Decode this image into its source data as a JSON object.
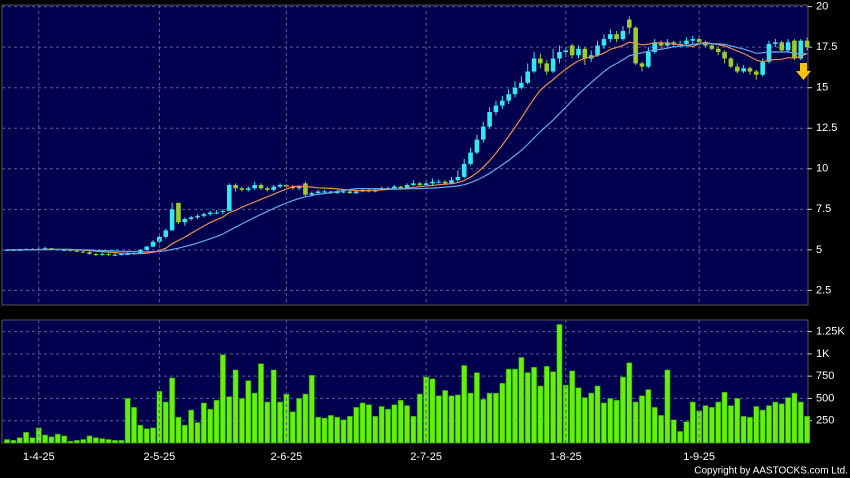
{
  "chart_data": [
    {
      "type": "candlestick",
      "up_color": "#33e8f0",
      "down_color": "#9ccc2c",
      "ylim": [
        1.6,
        20.1
      ],
      "yticks": [
        2.5,
        5,
        7.5,
        10,
        12.5,
        15,
        17.5,
        20
      ],
      "grid": true,
      "ohlc": [
        [
          4.98,
          5.05,
          4.95,
          5.0
        ],
        [
          5.0,
          5.05,
          4.95,
          5.0
        ],
        [
          5.0,
          5.08,
          4.97,
          5.0
        ],
        [
          5.0,
          5.1,
          4.98,
          5.05
        ],
        [
          5.05,
          5.1,
          5.0,
          5.05
        ],
        [
          5.02,
          5.15,
          5.0,
          5.05
        ],
        [
          5.05,
          5.2,
          5.0,
          5.1
        ],
        [
          5.1,
          5.12,
          5.0,
          5.05
        ],
        [
          5.05,
          5.08,
          4.95,
          5.0
        ],
        [
          5.0,
          5.05,
          4.92,
          5.0
        ],
        [
          5.0,
          5.02,
          4.9,
          4.95
        ],
        [
          4.95,
          5.0,
          4.85,
          4.9
        ],
        [
          4.9,
          4.95,
          4.8,
          4.85
        ],
        [
          4.85,
          4.9,
          4.7,
          4.75
        ],
        [
          4.75,
          4.8,
          4.62,
          4.7
        ],
        [
          4.7,
          4.85,
          4.65,
          4.75
        ],
        [
          4.75,
          4.8,
          4.62,
          4.7
        ],
        [
          4.7,
          4.78,
          4.62,
          4.7
        ],
        [
          4.68,
          4.8,
          4.65,
          4.75
        ],
        [
          4.72,
          4.85,
          4.68,
          4.75
        ],
        [
          4.75,
          4.9,
          4.7,
          4.8
        ],
        [
          4.8,
          5.05,
          4.78,
          5.0
        ],
        [
          5.0,
          5.25,
          4.95,
          5.2
        ],
        [
          5.2,
          5.6,
          5.15,
          5.5
        ],
        [
          5.5,
          5.9,
          5.4,
          5.8
        ],
        [
          5.8,
          6.3,
          5.7,
          6.2
        ],
        [
          6.2,
          7.9,
          6.2,
          7.5
        ],
        [
          7.9,
          7.9,
          6.6,
          6.7
        ],
        [
          6.7,
          7.0,
          6.5,
          6.9
        ],
        [
          6.9,
          7.1,
          6.8,
          7.0
        ],
        [
          7.0,
          7.2,
          6.9,
          7.1
        ],
        [
          7.1,
          7.3,
          7.0,
          7.2
        ],
        [
          7.2,
          7.4,
          7.1,
          7.3
        ],
        [
          7.3,
          7.45,
          7.2,
          7.3
        ],
        [
          7.35,
          7.5,
          7.2,
          7.4
        ],
        [
          7.4,
          9.1,
          7.4,
          9.0
        ],
        [
          9.0,
          9.1,
          8.6,
          8.8
        ],
        [
          8.8,
          8.9,
          8.6,
          8.7
        ],
        [
          8.7,
          8.9,
          8.6,
          8.8
        ],
        [
          8.8,
          9.2,
          8.7,
          9.0
        ],
        [
          9.0,
          9.1,
          8.7,
          8.8
        ],
        [
          8.8,
          8.9,
          8.6,
          8.7
        ],
        [
          8.7,
          9.0,
          8.6,
          8.9
        ],
        [
          8.9,
          9.1,
          8.8,
          9.0
        ],
        [
          9.0,
          9.05,
          8.8,
          8.9
        ],
        [
          8.9,
          9.0,
          8.7,
          8.8
        ],
        [
          8.8,
          9.0,
          8.7,
          8.9
        ],
        [
          9.1,
          9.2,
          8.3,
          8.4
        ],
        [
          8.4,
          8.6,
          8.3,
          8.5
        ],
        [
          8.5,
          8.7,
          8.4,
          8.6
        ],
        [
          8.6,
          8.7,
          8.5,
          8.6
        ],
        [
          8.6,
          8.65,
          8.45,
          8.5
        ],
        [
          8.5,
          8.7,
          8.45,
          8.6
        ],
        [
          8.6,
          8.7,
          8.5,
          8.6
        ],
        [
          8.6,
          8.65,
          8.45,
          8.5
        ],
        [
          8.5,
          8.7,
          8.45,
          8.6
        ],
        [
          8.6,
          8.8,
          8.55,
          8.7
        ],
        [
          8.7,
          8.75,
          8.55,
          8.6
        ],
        [
          8.6,
          8.8,
          8.55,
          8.7
        ],
        [
          8.7,
          8.9,
          8.65,
          8.8
        ],
        [
          8.8,
          8.9,
          8.7,
          8.8
        ],
        [
          8.8,
          9.0,
          8.75,
          8.9
        ],
        [
          8.9,
          8.95,
          8.7,
          8.8
        ],
        [
          8.8,
          9.1,
          8.75,
          9.0
        ],
        [
          9.0,
          9.3,
          8.95,
          9.1
        ],
        [
          9.1,
          9.2,
          8.9,
          9.0
        ],
        [
          9.0,
          9.3,
          8.95,
          9.1
        ],
        [
          9.1,
          9.4,
          9.0,
          9.2
        ],
        [
          9.2,
          9.35,
          9.1,
          9.2
        ],
        [
          9.2,
          9.3,
          9.0,
          9.1
        ],
        [
          9.1,
          9.5,
          9.05,
          9.3
        ],
        [
          9.3,
          9.9,
          9.2,
          9.5
        ],
        [
          9.5,
          10.6,
          9.4,
          10.3
        ],
        [
          10.3,
          11.3,
          10.2,
          11.0
        ],
        [
          11.0,
          12.1,
          10.9,
          11.8
        ],
        [
          11.8,
          12.9,
          11.6,
          12.6
        ],
        [
          12.6,
          13.8,
          12.5,
          13.5
        ],
        [
          13.5,
          14.2,
          13.3,
          13.9
        ],
        [
          13.9,
          14.5,
          13.7,
          14.2
        ],
        [
          14.2,
          14.9,
          14.0,
          14.6
        ],
        [
          14.6,
          15.4,
          14.4,
          15.0
        ],
        [
          15.0,
          15.7,
          14.9,
          15.3
        ],
        [
          15.3,
          16.5,
          15.2,
          16.0
        ],
        [
          16.0,
          17.2,
          15.9,
          16.8
        ],
        [
          16.8,
          17.1,
          16.2,
          16.5
        ],
        [
          16.5,
          16.7,
          15.8,
          16.0
        ],
        [
          16.0,
          17.4,
          15.9,
          16.8
        ],
        [
          16.8,
          17.6,
          16.5,
          17.2
        ],
        [
          17.2,
          17.5,
          16.9,
          17.3
        ],
        [
          17.6,
          17.7,
          16.8,
          17.0
        ],
        [
          17.0,
          17.6,
          16.8,
          17.4
        ],
        [
          17.4,
          17.5,
          16.4,
          16.8
        ],
        [
          16.8,
          17.3,
          16.6,
          17.0
        ],
        [
          17.0,
          17.9,
          16.9,
          17.6
        ],
        [
          17.6,
          18.3,
          17.4,
          18.0
        ],
        [
          18.0,
          18.6,
          17.8,
          18.3
        ],
        [
          18.3,
          18.5,
          17.8,
          18.0
        ],
        [
          18.0,
          18.8,
          17.9,
          18.5
        ],
        [
          19.2,
          19.4,
          18.3,
          18.7
        ],
        [
          18.7,
          18.8,
          16.4,
          16.5
        ],
        [
          16.5,
          16.6,
          16.0,
          16.3
        ],
        [
          16.3,
          17.5,
          16.2,
          17.2
        ],
        [
          17.2,
          18.0,
          17.1,
          17.8
        ],
        [
          17.8,
          17.9,
          17.4,
          17.6
        ],
        [
          17.6,
          18.0,
          17.5,
          17.8
        ],
        [
          17.8,
          17.9,
          17.5,
          17.7
        ],
        [
          17.7,
          17.9,
          17.5,
          17.7
        ],
        [
          17.7,
          18.1,
          17.6,
          17.9
        ],
        [
          17.9,
          18.2,
          17.7,
          18.0
        ],
        [
          18.0,
          18.1,
          17.6,
          17.8
        ],
        [
          17.8,
          17.9,
          17.5,
          17.6
        ],
        [
          17.6,
          17.7,
          17.3,
          17.4
        ],
        [
          17.4,
          17.5,
          17.0,
          17.2
        ],
        [
          17.2,
          17.3,
          16.5,
          16.8
        ],
        [
          16.8,
          16.9,
          16.2,
          16.3
        ],
        [
          16.3,
          16.5,
          15.9,
          16.0
        ],
        [
          16.0,
          16.4,
          15.9,
          16.2
        ],
        [
          16.2,
          16.3,
          15.8,
          16.0
        ],
        [
          16.0,
          16.1,
          15.5,
          15.8
        ],
        [
          15.8,
          16.8,
          15.7,
          16.6
        ],
        [
          16.6,
          17.9,
          16.5,
          17.7
        ],
        [
          17.7,
          18.0,
          17.5,
          17.8
        ],
        [
          17.8,
          17.9,
          17.2,
          17.3
        ],
        [
          17.3,
          18.0,
          17.2,
          17.8
        ],
        [
          17.9,
          18.0,
          16.7,
          16.8
        ],
        [
          16.8,
          18.0,
          16.7,
          17.9
        ],
        [
          17.9,
          18.1,
          17.3,
          17.5
        ]
      ],
      "series": [
        {
          "color": "#e8904a",
          "values": [
            5.0,
            5.0,
            5.0,
            5.0,
            5.01,
            5.02,
            5.02,
            5.03,
            5.03,
            5.03,
            5.02,
            5.0,
            4.98,
            4.95,
            4.92,
            4.89,
            4.86,
            4.83,
            4.8,
            4.78,
            4.76,
            4.77,
            4.8,
            4.85,
            4.96,
            5.1,
            5.38,
            5.58,
            5.79,
            6.02,
            6.25,
            6.47,
            6.68,
            6.86,
            7.02,
            7.3,
            7.43,
            7.63,
            7.8,
            7.95,
            8.12,
            8.27,
            8.43,
            8.6,
            8.75,
            8.9,
            8.92,
            8.9,
            8.87,
            8.83,
            8.81,
            8.79,
            8.76,
            8.72,
            8.68,
            8.66,
            8.64,
            8.66,
            8.68,
            8.7,
            8.72,
            8.74,
            8.76,
            8.8,
            8.86,
            8.9,
            8.94,
            8.97,
            9.02,
            9.05,
            9.08,
            9.14,
            9.28,
            9.48,
            9.75,
            10.1,
            10.5,
            10.97,
            11.46,
            12.0,
            12.56,
            13.14,
            13.74,
            14.32,
            14.86,
            15.2,
            15.5,
            15.83,
            16.14,
            16.42,
            16.66,
            16.81,
            16.9,
            16.98,
            17.13,
            17.36,
            17.48,
            17.61,
            17.8,
            17.75,
            17.64,
            17.68,
            17.76,
            17.76,
            17.74,
            17.68,
            17.66,
            17.6,
            17.55,
            17.7,
            17.8,
            17.72,
            17.66,
            17.58,
            17.43,
            17.26,
            17.11,
            16.92,
            16.7,
            16.6,
            16.7,
            16.74,
            16.75,
            16.85,
            16.83,
            16.93,
            17.1
          ]
        },
        {
          "color": "#6aa8e8",
          "values": [
            5.0,
            5.0,
            5.0,
            5.0,
            5.0,
            5.01,
            5.01,
            5.01,
            5.02,
            5.02,
            5.02,
            5.01,
            5.0,
            4.99,
            4.97,
            4.96,
            4.94,
            4.93,
            4.91,
            4.9,
            4.89,
            4.88,
            4.88,
            4.89,
            4.9,
            4.94,
            5.02,
            5.1,
            5.2,
            5.3,
            5.42,
            5.55,
            5.68,
            5.82,
            5.98,
            6.2,
            6.4,
            6.6,
            6.8,
            7.0,
            7.19,
            7.37,
            7.55,
            7.73,
            7.89,
            8.04,
            8.17,
            8.27,
            8.35,
            8.43,
            8.47,
            8.53,
            8.6,
            8.66,
            8.72,
            8.78,
            8.78,
            8.78,
            8.77,
            8.77,
            8.76,
            8.76,
            8.76,
            8.76,
            8.77,
            8.78,
            8.79,
            8.81,
            8.84,
            8.87,
            8.9,
            8.94,
            9.02,
            9.14,
            9.3,
            9.5,
            9.72,
            9.97,
            10.24,
            10.52,
            10.82,
            11.14,
            11.51,
            11.9,
            12.3,
            12.65,
            13.0,
            13.4,
            13.8,
            14.2,
            14.6,
            14.97,
            15.32,
            15.65,
            15.99,
            16.28,
            16.49,
            16.72,
            16.97,
            17.08,
            17.15,
            17.25,
            17.33,
            17.37,
            17.44,
            17.52,
            17.57,
            17.6,
            17.67,
            17.72,
            17.73,
            17.7,
            17.71,
            17.67,
            17.58,
            17.47,
            17.38,
            17.26,
            17.12,
            17.15,
            17.2,
            17.21,
            17.2,
            17.21,
            17.12,
            17.08,
            17.1
          ]
        }
      ]
    },
    {
      "type": "bar",
      "color": "#66f010",
      "ylim": [
        0,
        1380
      ],
      "yticks": [
        250,
        500,
        750,
        {
          "value": 1000,
          "label": "1K"
        },
        {
          "value": 1250,
          "label": "1.25K"
        }
      ],
      "grid": true,
      "categories": [
        null,
        null,
        null,
        null,
        null,
        "1-4-25",
        null,
        null,
        null,
        null,
        null,
        null,
        null,
        null,
        null,
        null,
        null,
        null,
        null,
        null,
        null,
        null,
        null,
        null,
        "2-5-25",
        null,
        null,
        null,
        null,
        null,
        null,
        null,
        null,
        null,
        null,
        null,
        null,
        null,
        null,
        null,
        null,
        null,
        null,
        null,
        "2-6-25",
        null,
        null,
        null,
        null,
        null,
        null,
        null,
        null,
        null,
        null,
        null,
        null,
        null,
        null,
        null,
        null,
        null,
        null,
        null,
        null,
        null,
        "2-7-25",
        null,
        null,
        null,
        null,
        null,
        null,
        null,
        null,
        null,
        null,
        null,
        null,
        null,
        null,
        null,
        null,
        null,
        null,
        null,
        null,
        null,
        "1-8-25",
        null,
        null,
        null,
        null,
        null,
        null,
        null,
        null,
        null,
        null,
        null,
        null,
        null,
        null,
        null,
        null,
        null,
        null,
        null,
        null,
        "1-9-25",
        null,
        null,
        null,
        null,
        null,
        null,
        null,
        null,
        null,
        null,
        null,
        null,
        null,
        null,
        null,
        null,
        null
      ],
      "values": [
        40,
        30,
        60,
        120,
        60,
        170,
        90,
        70,
        100,
        80,
        20,
        30,
        40,
        80,
        60,
        50,
        40,
        30,
        30,
        500,
        400,
        200,
        160,
        170,
        580,
        460,
        730,
        290,
        200,
        370,
        230,
        450,
        380,
        480,
        990,
        520,
        820,
        500,
        700,
        560,
        890,
        460,
        820,
        460,
        550,
        350,
        500,
        550,
        760,
        290,
        280,
        310,
        290,
        260,
        300,
        400,
        450,
        430,
        300,
        410,
        380,
        430,
        480,
        420,
        300,
        550,
        740,
        720,
        530,
        590,
        530,
        540,
        870,
        560,
        790,
        490,
        560,
        560,
        670,
        830,
        830,
        960,
        790,
        850,
        640,
        860,
        800,
        1330,
        650,
        810,
        620,
        510,
        560,
        640,
        450,
        500,
        480,
        740,
        900,
        460,
        530,
        600,
        400,
        310,
        820,
        260,
        130,
        240,
        460,
        360,
        420,
        400,
        460,
        570,
        420,
        500,
        300,
        290,
        410,
        370,
        420,
        460,
        440,
        510,
        560,
        460,
        300
      ]
    }
  ],
  "copyright": "Copyright by AASTOCKS.com Ltd."
}
